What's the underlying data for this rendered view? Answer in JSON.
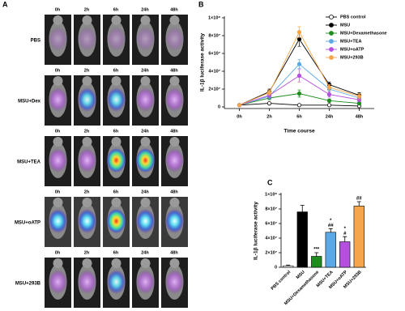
{
  "panel_a": {
    "label": "A",
    "rows": [
      {
        "label": "PBS",
        "times": [
          "0h",
          "2h",
          "6h",
          "24h",
          "48h"
        ]
      },
      {
        "label": "MSU+Dex",
        "times": [
          "0h",
          "2h",
          "6h",
          "24h",
          "48h"
        ]
      },
      {
        "label": "MSU+TEA",
        "times": [
          "0h",
          "2h",
          "6h",
          "24h",
          "48h"
        ]
      },
      {
        "label": "MSU+oATP",
        "times": [
          "0h",
          "2h",
          "6h",
          "24h",
          "48h"
        ]
      },
      {
        "label": "MSU+293B",
        "times": [
          "0h",
          "2h",
          "6h",
          "24h",
          "48h"
        ]
      }
    ]
  },
  "chart_data": [
    {
      "type": "line",
      "label": "B",
      "x_label": "Time course",
      "y_label": "IL-1β luciferase activity",
      "categories": [
        "0h",
        "2h",
        "6h",
        "24h",
        "48h"
      ],
      "ylim": [
        0,
        100000000
      ],
      "yticks": [
        0,
        {
          "value": 20000000,
          "label": "2×10⁷"
        },
        {
          "value": 40000000,
          "label": "4×10⁷"
        },
        {
          "value": 60000000,
          "label": "6×10⁷"
        },
        {
          "value": 80000000,
          "label": "8×10⁷"
        },
        {
          "value": 100000000,
          "label": "1×10⁸"
        }
      ],
      "legend": "upper right",
      "series": [
        {
          "name": "PBS control",
          "color": "#000000",
          "hollow": true,
          "values": [
            2000000,
            4000000,
            2000000,
            2000000,
            1000000
          ],
          "errors": [
            1000000,
            1000000,
            1000000,
            1000000,
            1000000
          ]
        },
        {
          "name": "MSU",
          "color": "#000000",
          "values": [
            2000000,
            17000000,
            76000000,
            25000000,
            13000000
          ],
          "errors": [
            1000000,
            3000000,
            8000000,
            3000000,
            3000000
          ]
        },
        {
          "name": "MSU+Dexamethasone",
          "color": "#1e8c1e",
          "values": [
            2000000,
            10000000,
            15000000,
            7000000,
            4000000
          ],
          "errors": [
            1000000,
            2000000,
            4000000,
            2000000,
            2000000
          ]
        },
        {
          "name": "MSU+TEA",
          "color": "#5aa9e6",
          "values": [
            2000000,
            12000000,
            48000000,
            20000000,
            10000000
          ],
          "errors": [
            1000000,
            3000000,
            5000000,
            3000000,
            2000000
          ]
        },
        {
          "name": "MSU+oATP",
          "color": "#b44fe0",
          "values": [
            2000000,
            13000000,
            35000000,
            14000000,
            8000000
          ],
          "errors": [
            1000000,
            3000000,
            7000000,
            3000000,
            2000000
          ]
        },
        {
          "name": "MSU+293B",
          "color": "#f5a64a",
          "values": [
            2000000,
            16000000,
            84000000,
            22000000,
            12000000
          ],
          "errors": [
            1000000,
            3000000,
            6000000,
            3000000,
            3000000
          ]
        }
      ]
    },
    {
      "type": "bar",
      "label": "C",
      "y_label": "IL-1β luciferase activity",
      "categories": [
        "PBS control",
        "MSU",
        "MSU+Dexamethasone",
        "MSU+TEA",
        "MSU+oATP",
        "MSU+293B"
      ],
      "values": [
        2000000,
        76000000,
        15000000,
        48000000,
        35000000,
        84000000
      ],
      "errors": [
        1000000,
        9000000,
        5000000,
        5000000,
        7000000,
        6000000
      ],
      "colors": [
        "#ffffff",
        "#000000",
        "#1e8c1e",
        "#5aa9e6",
        "#b44fe0",
        "#f5a64a"
      ],
      "annotations": [
        null,
        null,
        [
          "***"
        ],
        [
          "*",
          "##"
        ],
        [
          "*",
          "#"
        ],
        [
          "##"
        ]
      ],
      "ylim": [
        0,
        100000000
      ],
      "yticks": [
        0,
        {
          "value": 20000000,
          "label": "2×10⁷"
        },
        {
          "value": 40000000,
          "label": "4×10⁷"
        },
        {
          "value": 60000000,
          "label": "6×10⁷"
        },
        {
          "value": 80000000,
          "label": "8×10⁷"
        },
        {
          "value": 100000000,
          "label": "1×10⁸"
        }
      ]
    }
  ]
}
